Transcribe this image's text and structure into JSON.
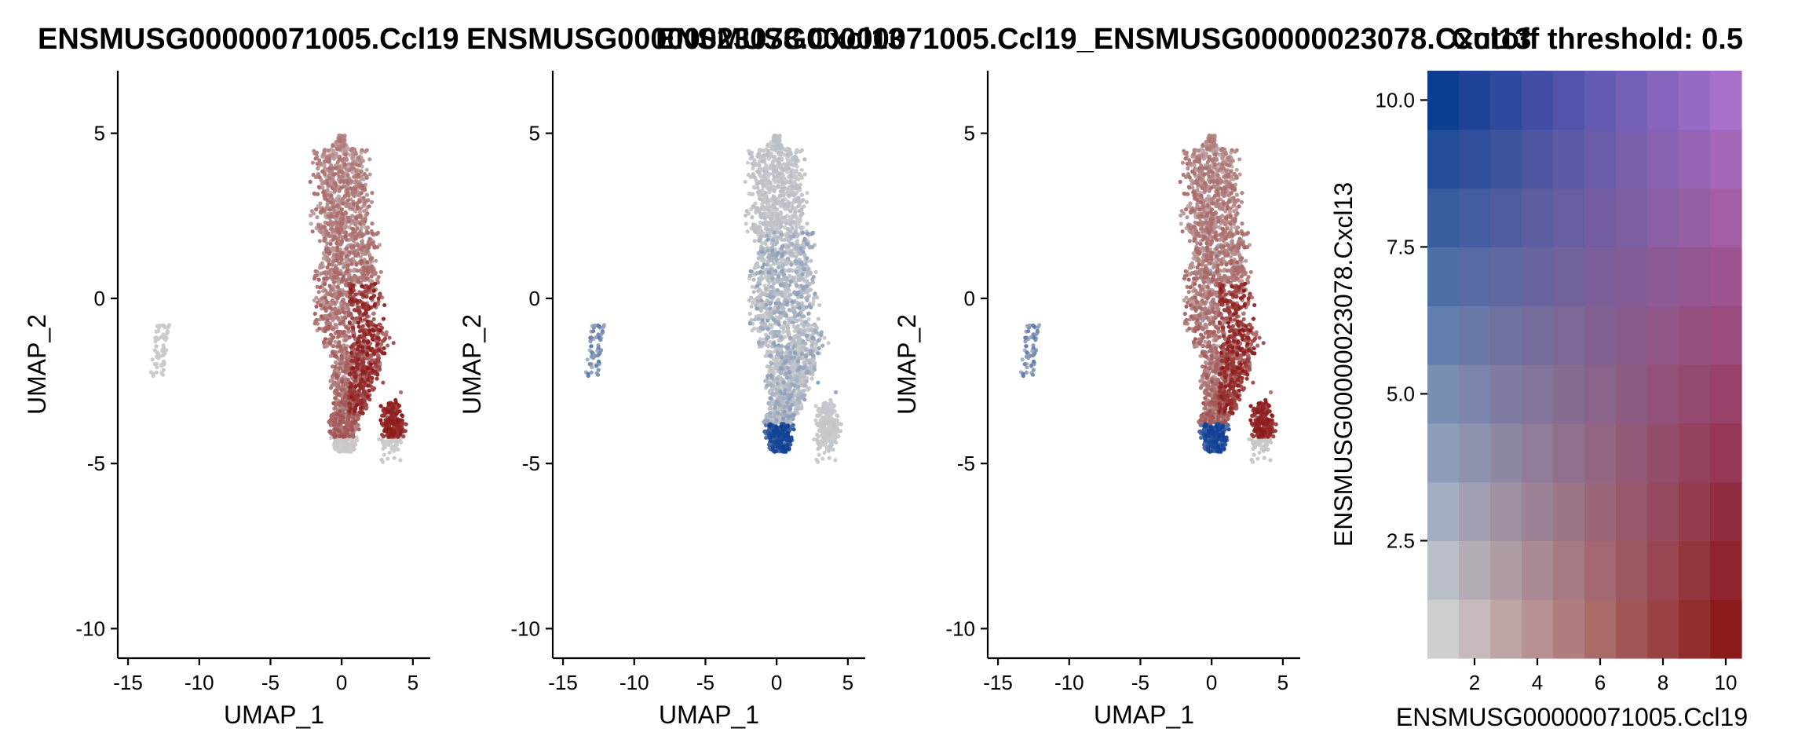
{
  "titles": {
    "panel1": "ENSMUSG00000071005.Ccl19",
    "panel2": "ENSMUSG00000023078.Cxcl13",
    "panel3": "ENSMUSG00000071005.Ccl19_ENSMUSG00000023078.Cxcl13",
    "panel4": "Cutoff threshold: 0.5"
  },
  "chart_data": [
    {
      "type": "scatter",
      "name": "ENSMUSG00000071005.Ccl19",
      "title": "ENSMUSG00000071005.Ccl19",
      "xlabel": "UMAP_1",
      "ylabel": "UMAP_2",
      "xlim": [
        -15.5,
        6
      ],
      "ylim": [
        -10.8,
        6.8
      ],
      "xticks": [
        "-15",
        "-10",
        "-5",
        "0",
        "5"
      ],
      "yticks": [
        "-10",
        "-5",
        "0",
        "5"
      ],
      "colors": {
        "low": "#cdcdcd",
        "high": "#8e1a1a"
      }
    },
    {
      "type": "scatter",
      "name": "ENSMUSG00000023078.Cxcl13",
      "title": "ENSMUSG00000023078.Cxcl13",
      "xlabel": "UMAP_1",
      "ylabel": "UMAP_2",
      "xlim": [
        -15.5,
        6
      ],
      "ylim": [
        -10.8,
        6.8
      ],
      "xticks": [
        "-15",
        "-10",
        "-5",
        "0",
        "5"
      ],
      "yticks": [
        "-10",
        "-5",
        "0",
        "5"
      ],
      "colors": {
        "low": "#cdcdcd",
        "high": "#0e3f95"
      }
    },
    {
      "type": "scatter",
      "name": "ENSMUSG00000071005.Ccl19_ENSMUSG00000023078.Cxcl13",
      "title": "ENSMUSG00000071005.Ccl19_ENSMUSG00000023078.Cxcl13",
      "xlabel": "UMAP_1",
      "ylabel": "UMAP_2",
      "xlim": [
        -15.5,
        6
      ],
      "ylim": [
        -10.8,
        6.8
      ],
      "xticks": [
        "-15",
        "-10",
        "-5",
        "0",
        "5"
      ],
      "yticks": [
        "-10",
        "-5",
        "0",
        "5"
      ],
      "colors": {
        "low": "#cdcdcd",
        "red": "#8e1a1a",
        "blue": "#0e3f95"
      }
    },
    {
      "type": "heatmap",
      "title": "Cutoff threshold: 0.5",
      "xlabel": "ENSMUSG00000071005.Ccl19",
      "ylabel": "ENSMUSG00000023078.Cxcl13",
      "xlim": [
        0.5,
        10.5
      ],
      "ylim": [
        0.5,
        10.5
      ],
      "xticks": [
        "2",
        "4",
        "6",
        "8",
        "10"
      ],
      "yticks": [
        "2.5",
        "5.0",
        "7.5",
        "10.0"
      ],
      "x": [
        1,
        2,
        3,
        4,
        5,
        6,
        7,
        8,
        9,
        10
      ],
      "y": [
        1,
        2,
        3,
        4,
        5,
        6,
        7,
        8,
        9,
        10
      ],
      "colors": {
        "origin": "#cecece",
        "x_max": "#8b1a1a",
        "y_max": "#0d3d91",
        "both_max": "#a871cb"
      }
    }
  ]
}
